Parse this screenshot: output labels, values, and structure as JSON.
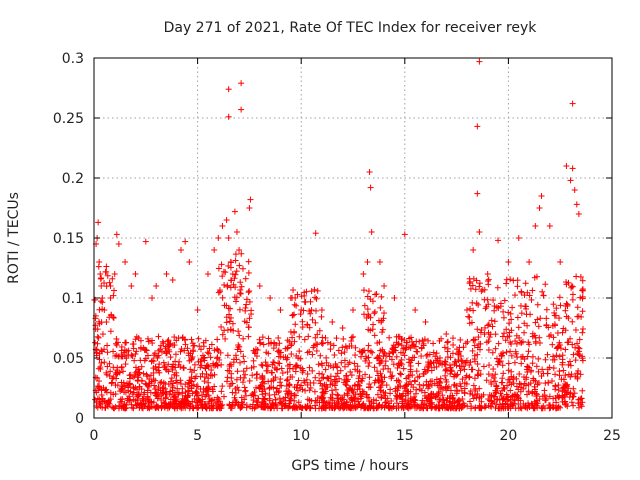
{
  "chart_data": {
    "type": "scatter",
    "title": "Day 271 of 2021, Rate Of TEC Index for receiver reyk",
    "xlabel": "GPS time / hours",
    "ylabel": "ROTI / TECUs",
    "xlim": [
      0,
      25
    ],
    "ylim": [
      0,
      0.3
    ],
    "xticks": [
      0,
      5,
      10,
      15,
      20,
      25
    ],
    "yticks": [
      0,
      0.05,
      0.1,
      0.15,
      0.2,
      0.25,
      0.3
    ],
    "xtick_labels": [
      "0",
      "5",
      "10",
      "15",
      "20",
      "25"
    ],
    "ytick_labels": [
      "0",
      "0.05",
      "0.1",
      "0.15",
      "0.2",
      "0.25",
      "0.3"
    ],
    "grid": true,
    "legend": "none",
    "marker": "plus",
    "color": "#ff0000",
    "points": [
      [
        0.1,
        0.145
      ],
      [
        0.15,
        0.15
      ],
      [
        0.2,
        0.163
      ],
      [
        0.25,
        0.13
      ],
      [
        0.3,
        0.12
      ],
      [
        0.35,
        0.11
      ],
      [
        0.4,
        0.1
      ],
      [
        0.5,
        0.09
      ],
      [
        0.6,
        0.08
      ],
      [
        0.8,
        0.1
      ],
      [
        1.0,
        0.12
      ],
      [
        1.1,
        0.153
      ],
      [
        1.2,
        0.145
      ],
      [
        1.5,
        0.13
      ],
      [
        1.8,
        0.11
      ],
      [
        2.0,
        0.12
      ],
      [
        2.5,
        0.147
      ],
      [
        2.8,
        0.1
      ],
      [
        3.0,
        0.11
      ],
      [
        3.5,
        0.12
      ],
      [
        3.8,
        0.115
      ],
      [
        4.2,
        0.14
      ],
      [
        4.4,
        0.147
      ],
      [
        4.6,
        0.13
      ],
      [
        5.0,
        0.09
      ],
      [
        5.5,
        0.12
      ],
      [
        5.8,
        0.14
      ],
      [
        6.0,
        0.15
      ],
      [
        6.2,
        0.16
      ],
      [
        6.4,
        0.165
      ],
      [
        6.5,
        0.15
      ],
      [
        6.6,
        0.13
      ],
      [
        6.7,
        0.12
      ],
      [
        6.8,
        0.172
      ],
      [
        6.9,
        0.155
      ],
      [
        7.0,
        0.14
      ],
      [
        7.5,
        0.175
      ],
      [
        7.55,
        0.182
      ],
      [
        8.0,
        0.11
      ],
      [
        8.5,
        0.1
      ],
      [
        9.0,
        0.09
      ],
      [
        9.5,
        0.1
      ],
      [
        10.0,
        0.09
      ],
      [
        10.5,
        0.09
      ],
      [
        10.7,
        0.154
      ],
      [
        11.0,
        0.09
      ],
      [
        11.5,
        0.08
      ],
      [
        12.0,
        0.075
      ],
      [
        12.5,
        0.09
      ],
      [
        13.0,
        0.12
      ],
      [
        13.2,
        0.13
      ],
      [
        13.3,
        0.205
      ],
      [
        13.35,
        0.192
      ],
      [
        13.4,
        0.155
      ],
      [
        13.8,
        0.13
      ],
      [
        14.0,
        0.11
      ],
      [
        14.5,
        0.1
      ],
      [
        15.0,
        0.153
      ],
      [
        15.5,
        0.09
      ],
      [
        16.0,
        0.08
      ],
      [
        17.0,
        0.07
      ],
      [
        18.0,
        0.09
      ],
      [
        18.3,
        0.14
      ],
      [
        18.5,
        0.187
      ],
      [
        18.6,
        0.155
      ],
      [
        19.0,
        0.12
      ],
      [
        19.5,
        0.148
      ],
      [
        20.0,
        0.13
      ],
      [
        20.5,
        0.15
      ],
      [
        21.0,
        0.13
      ],
      [
        21.3,
        0.16
      ],
      [
        21.5,
        0.175
      ],
      [
        21.6,
        0.185
      ],
      [
        22.0,
        0.16
      ],
      [
        22.5,
        0.13
      ],
      [
        22.8,
        0.21
      ],
      [
        23.0,
        0.198
      ],
      [
        23.1,
        0.208
      ],
      [
        23.2,
        0.19
      ],
      [
        23.3,
        0.178
      ],
      [
        23.4,
        0.17
      ],
      [
        23.6,
        0.106
      ],
      [
        6.5,
        0.251
      ],
      [
        6.5,
        0.274
      ],
      [
        7.1,
        0.279
      ],
      [
        7.1,
        0.257
      ],
      [
        18.6,
        0.297
      ],
      [
        18.5,
        0.243
      ],
      [
        23.1,
        0.262
      ]
    ]
  }
}
